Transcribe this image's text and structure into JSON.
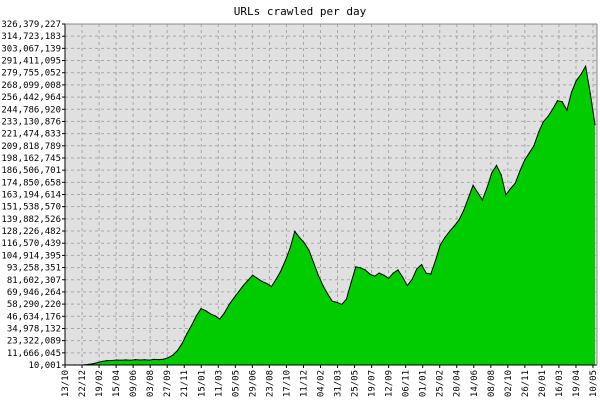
{
  "chart_data": {
    "type": "area",
    "title": "URLs crawled per day",
    "xlabel": "",
    "ylabel": "",
    "ylim": [
      10001,
      326379227
    ],
    "grid": true,
    "legend": "none",
    "fill_color": "#00cc00",
    "line_color": "#000000",
    "plot_background": "#e0e0e0",
    "y_ticks": [
      "10,001",
      "11,666,045",
      "23,322,089",
      "34,978,132",
      "46,634,176",
      "58,290,220",
      "69,946,264",
      "81,602,307",
      "93,258,351",
      "104,914,395",
      "116,570,439",
      "128,226,482",
      "139,882,526",
      "151,538,570",
      "163,194,614",
      "174,850,658",
      "186,506,701",
      "198,162,745",
      "209,818,789",
      "221,474,833",
      "233,130,876",
      "244,786,920",
      "256,442,964",
      "268,099,008",
      "279,755,052",
      "291,411,095",
      "303,067,139",
      "314,723,183",
      "326,379,227"
    ],
    "x_ticks": [
      "13/10",
      "22/12",
      "19/02",
      "15/04",
      "09/06",
      "03/08",
      "27/09",
      "21/11",
      "15/01",
      "11/03",
      "05/05",
      "29/06",
      "23/08",
      "17/10",
      "11/12",
      "04/02",
      "31/03",
      "25/05",
      "19/07",
      "12/09",
      "06/11",
      "01/01",
      "25/02",
      "20/04",
      "14/06",
      "08/08",
      "02/10",
      "26/11",
      "20/01",
      "16/03",
      "19/04",
      "10/05"
    ],
    "series": [
      {
        "values": [
          10001,
          10001,
          10001,
          10001,
          150000,
          600000,
          1300000,
          2400000,
          3500000,
          4200000,
          4300000,
          4800000,
          4600000,
          4900000,
          4500000,
          5200000,
          4800000,
          5000000,
          4700000,
          5400000,
          5200000,
          5600000,
          7000000,
          9500000,
          14000000,
          21000000,
          30000000,
          38000000,
          47000000,
          54000000,
          52000000,
          49000000,
          47000000,
          44000000,
          50000000,
          58000000,
          64000000,
          70000000,
          76000000,
          81000000,
          86000000,
          83000000,
          80000000,
          78000000,
          75000000,
          82000000,
          90000000,
          100000000,
          112000000,
          128000000,
          122000000,
          117000000,
          110000000,
          98000000,
          86000000,
          76000000,
          68000000,
          61000000,
          60000000,
          58000000,
          63000000,
          79000000,
          94000000,
          93000000,
          91000000,
          87000000,
          85000000,
          88000000,
          86000000,
          83000000,
          88000000,
          91000000,
          84000000,
          76000000,
          82000000,
          92000000,
          96000000,
          88000000,
          87000000,
          100000000,
          115000000,
          122000000,
          128000000,
          133000000,
          139000000,
          148000000,
          160000000,
          172000000,
          165000000,
          158000000,
          170000000,
          184000000,
          191000000,
          182000000,
          163000000,
          169000000,
          174000000,
          186000000,
          196000000,
          203000000,
          210000000,
          223000000,
          233000000,
          238000000,
          245000000,
          253000000,
          252000000,
          244000000,
          261000000,
          272000000,
          278000000,
          286000000,
          260000000,
          230000000
        ]
      }
    ]
  }
}
